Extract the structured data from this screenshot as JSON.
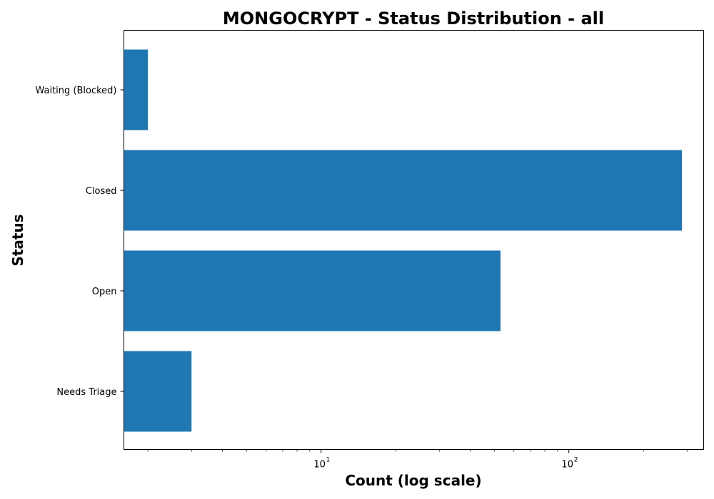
{
  "chart_data": {
    "type": "bar",
    "orientation": "horizontal",
    "title": "MONGOCRYPT - Status Distribution - all",
    "xlabel": "Count (log scale)",
    "ylabel": "Status",
    "x_scale": "log",
    "xlim": [
      1.6,
      350
    ],
    "x_major_ticks": [
      {
        "value": 10,
        "base": "10",
        "exp": "1"
      },
      {
        "value": 100,
        "base": "10",
        "exp": "2"
      }
    ],
    "categories": [
      "Waiting (Blocked)",
      "Closed",
      "Open",
      "Needs Triage"
    ],
    "values": [
      2,
      286,
      53,
      3
    ],
    "bar_color": "#1f77b4",
    "grid": false,
    "legend": false
  }
}
